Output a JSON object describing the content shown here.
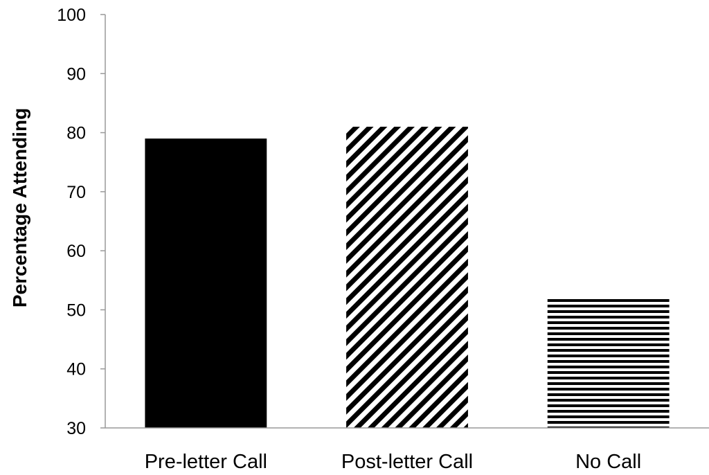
{
  "chart_data": {
    "type": "bar",
    "title": "",
    "xlabel": "",
    "ylabel": "Percentage Attending",
    "categories": [
      "Pre-letter Call",
      "Post-letter Call",
      "No Call"
    ],
    "values": [
      79,
      81,
      52
    ],
    "ylim": [
      30,
      100
    ],
    "yticks": [
      30,
      40,
      50,
      60,
      70,
      80,
      90,
      100
    ],
    "grid": false,
    "legend": "none",
    "bar_styles": [
      "solid-black",
      "diagonal-stripes",
      "horizontal-stripes"
    ],
    "colors": {
      "bar": "#000000",
      "axis": "#999999",
      "background": "#ffffff"
    }
  }
}
